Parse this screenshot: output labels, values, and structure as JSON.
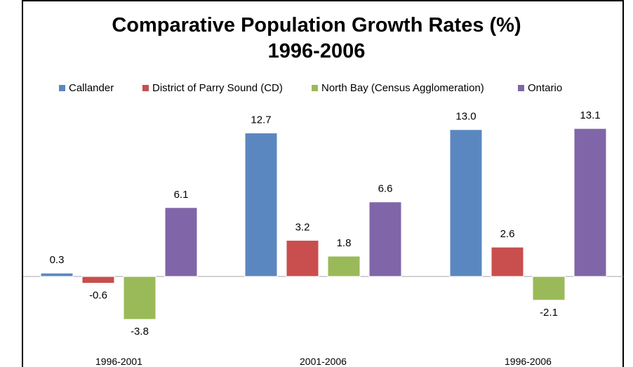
{
  "chart_data": {
    "type": "bar",
    "title": "Comparative Population Growth Rates (%)",
    "subtitle": "1996-2006",
    "categories": [
      "1996-2001",
      "2001-2006",
      "1996-2006"
    ],
    "series": [
      {
        "name": "Callander",
        "color": "#5b87c0",
        "values": [
          0.3,
          12.7,
          13.0
        ]
      },
      {
        "name": "District of Parry Sound (CD)",
        "color": "#c84f4d",
        "values": [
          -0.6,
          3.2,
          2.6
        ]
      },
      {
        "name": "North Bay (Census Agglomeration)",
        "color": "#9aba59",
        "values": [
          -3.8,
          1.8,
          -2.1
        ]
      },
      {
        "name": "Ontario",
        "color": "#8066a8",
        "values": [
          6.1,
          6.6,
          13.1
        ]
      }
    ],
    "data_labels": [
      [
        "0.3",
        "12.7",
        "13.0"
      ],
      [
        "-0.6",
        "3.2",
        "2.6"
      ],
      [
        "-3.8",
        "1.8",
        "-2.1"
      ],
      [
        "6.1",
        "6.6",
        "13.1"
      ]
    ],
    "ylim": [
      -5.5,
      15
    ],
    "grid": false,
    "legend_position": "top"
  }
}
